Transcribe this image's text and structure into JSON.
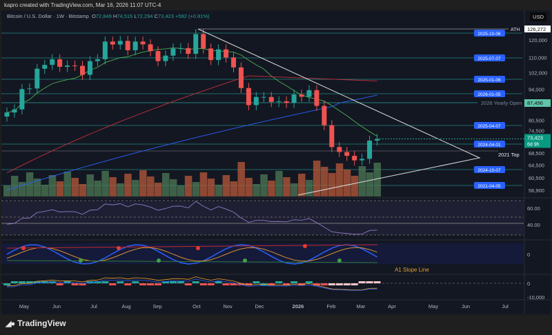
{
  "header": {
    "credit": "kapro created with TradingView.com, Mar 16, 2026 11:07 UTC-4"
  },
  "legend": {
    "symbol": "Bitcoin / U.S. Dollar · 1W · Bitstamp",
    "o_label": "O",
    "o": "72,849",
    "h_label": "H",
    "h": "74,515",
    "l_label": "L",
    "l": "72,294",
    "c_label": "C",
    "c": "73,423",
    "change": "+592 (+0.81%)"
  },
  "currency": "USD",
  "colors": {
    "up": "#26a69a",
    "down": "#ef5350",
    "level": "#26a69a",
    "tag": "#2962ff",
    "background": "#131722"
  },
  "chart_data": {
    "type": "candlestick",
    "interval": "1W",
    "y_scale": "log",
    "price_ticks": [
      "120,000",
      "110,000",
      "102,000",
      "94,000",
      "80,500",
      "74,500",
      "68,500",
      "64,500",
      "60,500",
      "56,900"
    ],
    "time_ticks": [
      "May",
      "Jun",
      "Jul",
      "Aug",
      "Sep",
      "Oct",
      "Nov",
      "Dec",
      "2026",
      "Feb",
      "Mar",
      "Apr",
      "May",
      "Jun",
      "Jul"
    ],
    "weekly_close_approx": [
      83700,
      85000,
      94000,
      94300,
      104000,
      106000,
      109000,
      105000,
      105700,
      105500,
      100900,
      108000,
      109000,
      119000,
      117300,
      119400,
      114000,
      119000,
      117400,
      113500,
      108000,
      111000,
      115000,
      115200,
      112000,
      123500,
      115000,
      108600,
      114500,
      110000,
      104700,
      94500,
      86800,
      90400,
      90400,
      88200,
      88500,
      87800,
      91500,
      90500,
      93500,
      86500,
      78600,
      70500,
      68800,
      67500,
      66000,
      66500,
      72800,
      73423
    ],
    "ath": {
      "label": "ATH",
      "value": "126,272"
    },
    "yearly_open": {
      "label": "2026 Yearly Open",
      "value": "87,496"
    },
    "last_price": {
      "value": "73,423",
      "countdown": "6d 9h"
    },
    "levels": [
      {
        "label": "2025-10-06"
      },
      {
        "label": "2025-07-07"
      },
      {
        "label": "2025-01-06"
      },
      {
        "label": "2026-01-05"
      },
      {
        "label": "2025-04-07"
      },
      {
        "label": "2024-04-01"
      },
      {
        "label": "2024-10-07"
      },
      {
        "label": "2021-04-05"
      }
    ],
    "annotation_2021_top": "2021 Top",
    "rsi_ticks": [
      "60.00",
      "40.00"
    ],
    "osc_ticks": [
      "0"
    ],
    "osc_label": "A1 Slope Line",
    "hist_ticks": [
      "0",
      "-10,000"
    ]
  },
  "footer": {
    "brand": "TradingView"
  }
}
